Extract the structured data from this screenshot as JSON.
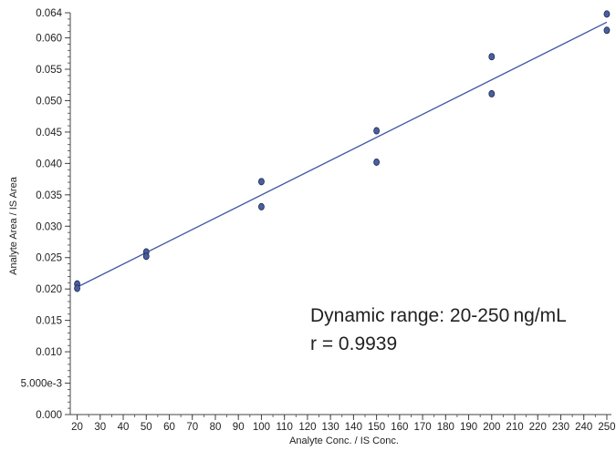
{
  "chart_data": {
    "type": "scatter",
    "xlabel": "Analyte Conc. / IS Conc.",
    "ylabel": "Analyte Area / IS Area",
    "xlim": [
      17,
      252
    ],
    "ylim": [
      0,
      0.064
    ],
    "x_ticks": [
      20,
      30,
      40,
      50,
      60,
      70,
      80,
      90,
      100,
      110,
      120,
      130,
      140,
      150,
      160,
      170,
      180,
      190,
      200,
      210,
      220,
      230,
      240,
      250
    ],
    "y_ticks": [
      {
        "value": 0.0,
        "label": "0.000"
      },
      {
        "value": 0.005,
        "label": "5.000e-3"
      },
      {
        "value": 0.01,
        "label": "0.010"
      },
      {
        "value": 0.015,
        "label": "0.015"
      },
      {
        "value": 0.02,
        "label": "0.020"
      },
      {
        "value": 0.025,
        "label": "0.025"
      },
      {
        "value": 0.03,
        "label": "0.030"
      },
      {
        "value": 0.035,
        "label": "0.035"
      },
      {
        "value": 0.04,
        "label": "0.040"
      },
      {
        "value": 0.045,
        "label": "0.045"
      },
      {
        "value": 0.05,
        "label": "0.050"
      },
      {
        "value": 0.055,
        "label": "0.055"
      },
      {
        "value": 0.06,
        "label": "0.060"
      },
      {
        "value": 0.064,
        "label": "0.064"
      }
    ],
    "grid": false,
    "points": [
      {
        "x": 20,
        "y": 0.0208
      },
      {
        "x": 20,
        "y": 0.0201
      },
      {
        "x": 50,
        "y": 0.0259
      },
      {
        "x": 50,
        "y": 0.0252
      },
      {
        "x": 100,
        "y": 0.0371
      },
      {
        "x": 100,
        "y": 0.0331
      },
      {
        "x": 150,
        "y": 0.0452
      },
      {
        "x": 150,
        "y": 0.0402
      },
      {
        "x": 200,
        "y": 0.057
      },
      {
        "x": 200,
        "y": 0.0511
      },
      {
        "x": 250,
        "y": 0.0638
      },
      {
        "x": 250,
        "y": 0.0612
      }
    ],
    "fit_line": {
      "x": [
        20,
        250
      ],
      "y": [
        0.0203,
        0.0625
      ]
    },
    "annotations": [
      "Dynamic range: 20-250 ng/mL",
      "r = 0.9939"
    ]
  },
  "colors": {
    "line": "#3f58a3",
    "marker_fill": "#4a5f9c",
    "marker_stroke": "#1e2a55",
    "axis": "#444444"
  }
}
